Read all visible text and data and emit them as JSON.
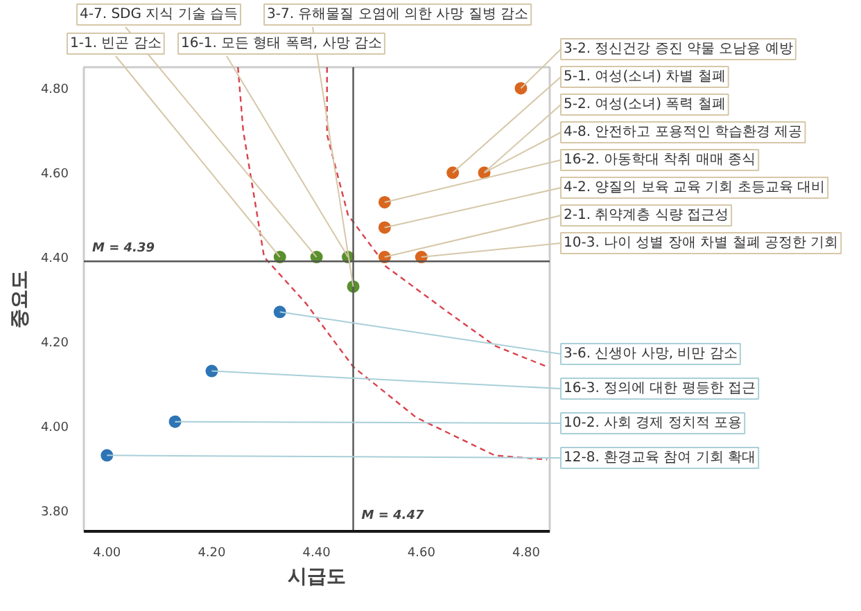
{
  "chart_data": {
    "type": "scatter",
    "xlabel": "시급도",
    "ylabel": "중요도",
    "xlim": [
      3.956,
      4.845
    ],
    "ylim": [
      3.75,
      4.85
    ],
    "xticks": [
      {
        "value": 4.0,
        "label": "4.00"
      },
      {
        "value": 4.2,
        "label": "4.20"
      },
      {
        "value": 4.4,
        "label": "4.40"
      },
      {
        "value": 4.6,
        "label": "4.60"
      },
      {
        "value": 4.8,
        "label": "4.80"
      }
    ],
    "yticks": [
      {
        "value": 3.8,
        "label": "3.80"
      },
      {
        "value": 4.0,
        "label": "4.00"
      },
      {
        "value": 4.2,
        "label": "4.20"
      },
      {
        "value": 4.4,
        "label": "4.40"
      },
      {
        "value": 4.6,
        "label": "4.60"
      },
      {
        "value": 4.8,
        "label": "4.80"
      }
    ],
    "marker": "circle",
    "series": [
      {
        "type": "line",
        "color": "#d9434d",
        "line_style": "dashed",
        "marker": "none",
        "x": [
          4.25,
          4.26,
          4.28,
          4.3,
          4.38,
          4.47,
          4.59,
          4.74,
          4.84
        ],
        "values": [
          4.85,
          4.7,
          4.55,
          4.4,
          4.29,
          4.14,
          4.02,
          3.93,
          3.92
        ]
      },
      {
        "type": "line",
        "color": "#d9434d",
        "line_style": "dashed",
        "marker": "none",
        "x": [
          4.42,
          4.42,
          4.46,
          4.52,
          4.53,
          4.65,
          4.74,
          4.84
        ],
        "values": [
          4.85,
          4.69,
          4.5,
          4.4,
          4.38,
          4.27,
          4.19,
          4.14
        ]
      },
      {
        "color": "#d9661f",
        "x": [
          4.79,
          4.66,
          4.72,
          4.53,
          4.53,
          4.53,
          4.6
        ],
        "values": [
          4.8,
          4.6,
          4.6,
          4.53,
          4.47,
          4.4,
          4.4
        ]
      },
      {
        "color": "#5a8f2e",
        "x": [
          4.33,
          4.4,
          4.46,
          4.47
        ],
        "values": [
          4.4,
          4.4,
          4.4,
          4.33
        ]
      },
      {
        "color": "#2e75b6",
        "x": [
          4.33,
          4.2,
          4.13,
          4.0
        ],
        "values": [
          4.27,
          4.13,
          4.01,
          3.93
        ]
      }
    ],
    "ref_lines": [
      {
        "axis": "y",
        "value": 4.39,
        "label": "M = 4.39"
      },
      {
        "axis": "x",
        "value": 4.47,
        "label": "M = 4.47"
      }
    ],
    "annotations": [
      {
        "text": "4-7. SDG 지식 기술 습득",
        "x": 4.4,
        "y": 4.4
      },
      {
        "text": "3-7. 유해물질 오염에 의한 사망 질병 감소",
        "x": 4.47,
        "y": 4.33
      },
      {
        "text": "1-1. 빈곤 감소",
        "x": 4.33,
        "y": 4.4
      },
      {
        "text": "16-1. 모든 형태 폭력, 사망 감소",
        "x": 4.46,
        "y": 4.4
      },
      {
        "text": "3-2. 정신건강 증진 약물 오남용 예방",
        "x": 4.79,
        "y": 4.8
      },
      {
        "text": "5-1. 여성(소녀) 차별 철폐",
        "x": 4.66,
        "y": 4.6
      },
      {
        "text": "5-2. 여성(소녀) 폭력 철폐",
        "x": 4.72,
        "y": 4.6
      },
      {
        "text": "4-8. 안전하고 포용적인 학습환경 제공",
        "x": 4.72,
        "y": 4.6
      },
      {
        "text": "16-2. 아동학대 착취 매매 종식",
        "x": 4.53,
        "y": 4.53
      },
      {
        "text": "4-2. 양질의 보육 교육 기회 초등교육 대비",
        "x": 4.53,
        "y": 4.47
      },
      {
        "text": "2-1. 취약계층 식량 접근성",
        "x": 4.53,
        "y": 4.4
      },
      {
        "text": "10-3. 나이 성별 장애 차별 철폐 공정한 기회",
        "x": 4.6,
        "y": 4.4
      },
      {
        "text": "3-6. 신생아 사망, 비만 감소",
        "x": 4.33,
        "y": 4.27
      },
      {
        "text": "16-3. 정의에 대한 평등한 접근",
        "x": 4.2,
        "y": 4.13
      },
      {
        "text": "10-2. 사회 경제 정치적 포용",
        "x": 4.13,
        "y": 4.01
      },
      {
        "text": "12-8. 환경교육 참여 기회 확대",
        "x": 4.0,
        "y": 3.93
      }
    ]
  }
}
